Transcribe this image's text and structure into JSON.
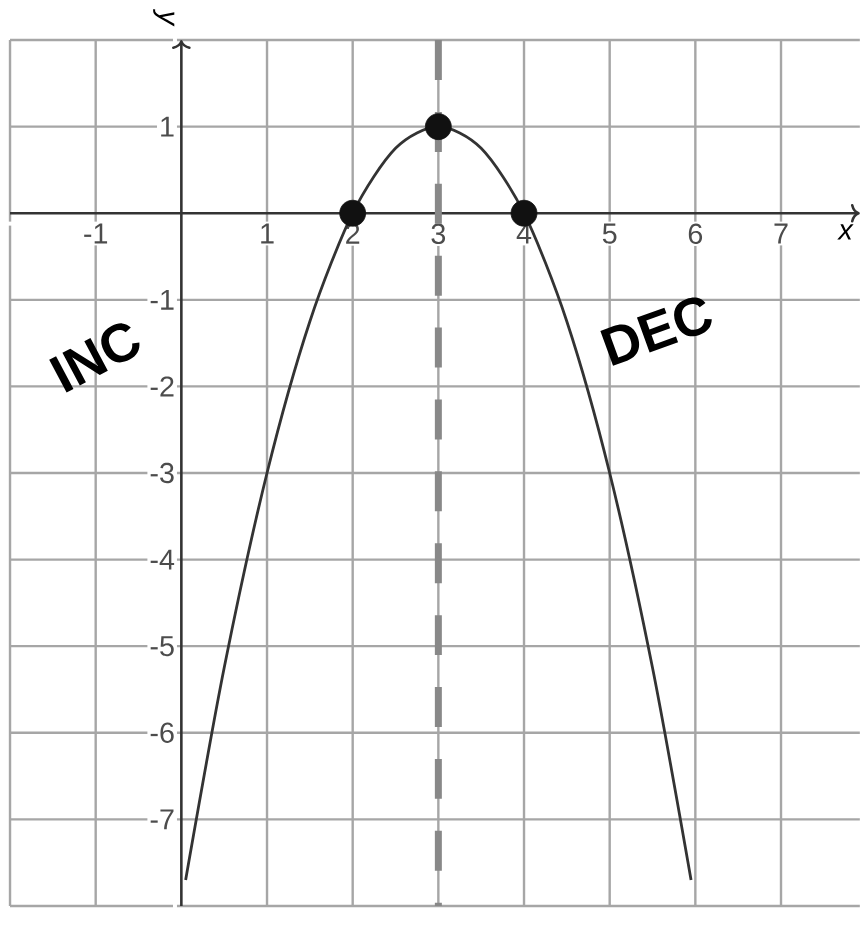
{
  "chart_data": {
    "type": "line",
    "xlabel": "x",
    "ylabel": "y",
    "xlim": [
      -2,
      7.92
    ],
    "ylim": [
      -8,
      2
    ],
    "xticks": [
      {
        "value": -2,
        "label": null
      },
      -1,
      {
        "value": 0,
        "label": null
      },
      1,
      2,
      3,
      4,
      5,
      6,
      7
    ],
    "yticks": [
      {
        "value": -8,
        "label": null
      },
      -7,
      -6,
      -5,
      -4,
      -3,
      -2,
      -1,
      {
        "value": 0,
        "label": null
      },
      1,
      {
        "value": 2,
        "label": null
      }
    ],
    "grid": true,
    "series": [
      {
        "color": "#333333",
        "marker": "none",
        "x": [
          0.05,
          0.5,
          1,
          1.5,
          2,
          2.5,
          3,
          3.5,
          4,
          4.5,
          5,
          5.5,
          5.95
        ],
        "values": [
          -7.7,
          -5.25,
          -3,
          -1.25,
          0,
          0.75,
          1,
          0.75,
          0,
          -1.25,
          -3,
          -5.25,
          -7.7
        ]
      },
      {
        "type": "scatter",
        "color": "#111111",
        "marker": "circle",
        "x": [
          2,
          3,
          4
        ],
        "values": [
          0,
          1,
          0
        ]
      }
    ],
    "ref_lines": [
      {
        "axis": "x",
        "value": 3,
        "color": "#888888",
        "line_style": "dashed"
      }
    ],
    "annotations": [
      "INC",
      "DEC"
    ]
  }
}
